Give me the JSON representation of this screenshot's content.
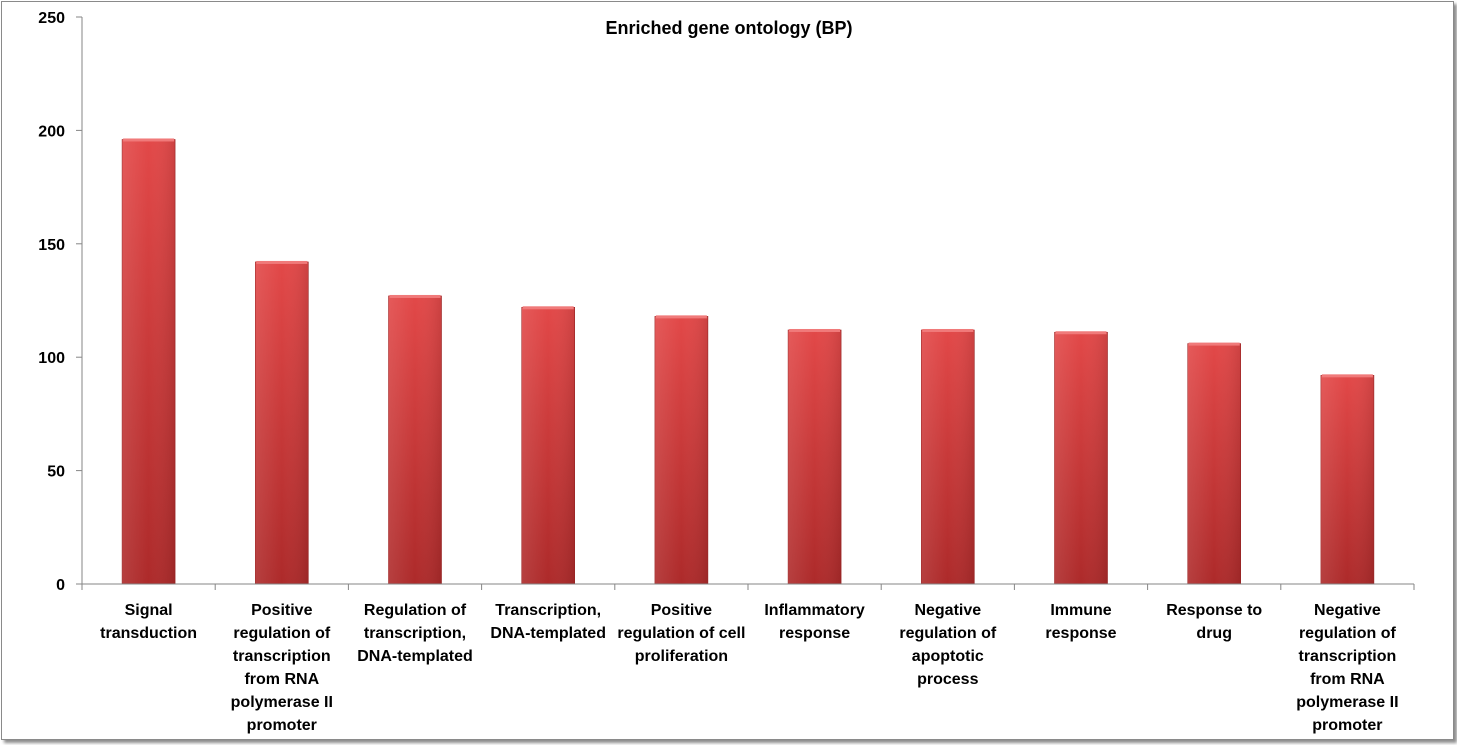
{
  "chart_data": {
    "type": "bar",
    "title": "Enriched gene ontology (BP)",
    "xlabel": "",
    "ylabel": "",
    "ylim": [
      0,
      250
    ],
    "yticks": [
      0,
      50,
      100,
      150,
      200,
      250
    ],
    "grid": false,
    "legend": "none",
    "bar_color": "#d63a3a",
    "categories": [
      "Signal transduction",
      "Positive regulation of transcription from RNA polymerase II promoter",
      "Regulation of transcription, DNA-templated",
      "Transcription, DNA-templated",
      "Positive regulation of cell proliferation",
      "Inflammatory response",
      "Negative regulation of apoptotic process",
      "Immune response",
      "Response to drug",
      "Negative regulation of transcription from RNA polymerase II promoter"
    ],
    "category_lines": [
      [
        "Signal",
        "transduction"
      ],
      [
        "Positive",
        "regulation of",
        "transcription",
        "from RNA",
        "polymerase II",
        "promoter"
      ],
      [
        "Regulation of",
        "transcription,",
        "DNA-templated"
      ],
      [
        "Transcription,",
        "DNA-templated"
      ],
      [
        "Positive",
        "regulation of cell",
        "proliferation"
      ],
      [
        "Inflammatory",
        "response"
      ],
      [
        "Negative",
        "regulation of",
        "apoptotic",
        "process"
      ],
      [
        "Immune",
        "response"
      ],
      [
        "Response to",
        "drug"
      ],
      [
        "Negative",
        "regulation of",
        "transcription",
        "from RNA",
        "polymerase II",
        "promoter"
      ]
    ],
    "values": [
      196,
      142,
      127,
      122,
      118,
      112,
      112,
      111,
      106,
      92
    ]
  }
}
